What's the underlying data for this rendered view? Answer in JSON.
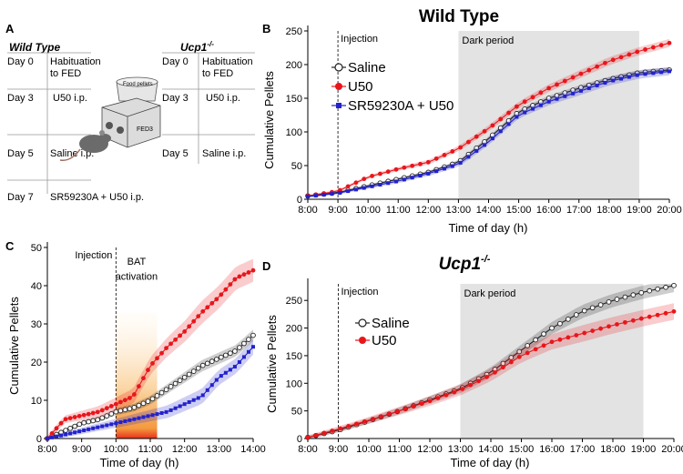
{
  "panel_labels": [
    "A",
    "B",
    "C",
    "D"
  ],
  "schematic": {
    "wt_title": "Wild Type",
    "ko_title_base": "Ucp1",
    "ko_title_sup": "-/-",
    "wt_rows": [
      {
        "day": "Day 0",
        "text1": "Habituation",
        "text2": "to FED"
      },
      {
        "day": "Day 3",
        "text1": "U50 i.p.",
        "text2": ""
      },
      {
        "day": "Day 5",
        "text1": "Saline i.p.",
        "text2": ""
      },
      {
        "day": "Day 7",
        "text1": "SR59230A + U50 i.p.",
        "text2": ""
      }
    ],
    "ko_rows": [
      {
        "day": "Day 0",
        "text1": "Habituation",
        "text2": "to FED"
      },
      {
        "day": "Day 3",
        "text1": "U50 i.p.",
        "text2": ""
      },
      {
        "day": "Day 5",
        "text1": "Saline i.p.",
        "text2": ""
      }
    ],
    "device_label": "FED3",
    "food_label": "Food pellets"
  },
  "colors": {
    "saline": "#222222",
    "u50": "#e8161b",
    "sr": "#2222cc",
    "dark_period": "#e3e3e3"
  },
  "chart_data": [
    {
      "id": "B",
      "type": "line",
      "title": "Wild Type",
      "xlabel": "Time of day (h)",
      "ylabel": "Cumulative Pellets",
      "x_ticks": [
        "8:00",
        "9:00",
        "10:00",
        "11:00",
        "12:00",
        "13:00",
        "14:00",
        "15:00",
        "16:00",
        "17:00",
        "18:00",
        "19:00",
        "20:00"
      ],
      "xlim": [
        8,
        20
      ],
      "ylim": [
        0,
        250
      ],
      "y_ticks": [
        0,
        50,
        100,
        150,
        200,
        250
      ],
      "annotations": {
        "injection": "Injection",
        "dark": "Dark period"
      },
      "injection_x": 9,
      "dark_range": [
        13,
        19
      ],
      "x": [
        8,
        9,
        10,
        11,
        12,
        13,
        14,
        15,
        16,
        17,
        18,
        19,
        20
      ],
      "series": [
        {
          "name": "Saline",
          "key": "saline",
          "marker": "open-circle",
          "values": [
            5,
            10,
            20,
            30,
            40,
            55,
            90,
            130,
            150,
            165,
            178,
            188,
            192
          ],
          "spread": 4
        },
        {
          "name": "U50",
          "key": "u50",
          "marker": "filled-circle",
          "values": [
            5,
            12,
            33,
            45,
            55,
            75,
            105,
            140,
            165,
            185,
            205,
            220,
            232
          ],
          "spread": 6
        },
        {
          "name": "SR59230A + U50",
          "key": "sr",
          "marker": "square",
          "values": [
            4,
            9,
            18,
            27,
            38,
            52,
            85,
            125,
            145,
            160,
            175,
            185,
            190
          ],
          "spread": 6
        }
      ]
    },
    {
      "id": "C",
      "type": "line",
      "title": "",
      "xlabel": "Time of day (h)",
      "ylabel": "Cumulative Pellets",
      "x_ticks": [
        "8:00",
        "9:00",
        "10:00",
        "11:00",
        "12:00",
        "13:00",
        "14:00"
      ],
      "xlim": [
        8,
        14
      ],
      "ylim": [
        0,
        50
      ],
      "y_ticks": [
        0,
        10,
        20,
        30,
        40,
        50
      ],
      "annotations": {
        "injection": "Injection",
        "bat1": "BAT",
        "bat2": "activation"
      },
      "injection_x": 10,
      "bat_range": [
        10,
        11.2
      ],
      "x": [
        8,
        8.5,
        9,
        9.5,
        10,
        10.5,
        11,
        11.5,
        12,
        12.5,
        13,
        13.5,
        14
      ],
      "series": [
        {
          "name": "Saline",
          "key": "saline",
          "marker": "open-circle",
          "values": [
            0,
            2,
            4,
            5,
            7,
            8,
            10,
            13,
            16,
            19,
            21,
            23,
            27
          ],
          "spread": 1.5
        },
        {
          "name": "U50",
          "key": "u50",
          "marker": "filled-circle",
          "values": [
            0,
            5,
            6,
            7,
            9,
            11,
            19,
            24,
            28,
            33,
            37,
            42,
            44
          ],
          "spread": 3
        },
        {
          "name": "SR59230A + U50",
          "key": "sr",
          "marker": "square",
          "values": [
            0,
            1,
            2,
            3,
            4,
            5,
            6,
            7,
            9,
            11,
            16,
            19,
            24
          ],
          "spread": 2
        }
      ]
    },
    {
      "id": "D",
      "type": "line",
      "title_base": "Ucp1",
      "title_sup": "-/-",
      "xlabel": "Time of day (h)",
      "ylabel": "Cumulative Pellets",
      "x_ticks": [
        "8:00",
        "9:00",
        "10:00",
        "11:00",
        "12:00",
        "13:00",
        "14:00",
        "15:00",
        "16:00",
        "17:00",
        "18:00",
        "19:00",
        "20:00"
      ],
      "xlim": [
        8,
        20
      ],
      "ylim": [
        0,
        280
      ],
      "y_ticks": [
        0,
        50,
        100,
        150,
        200,
        250
      ],
      "annotations": {
        "injection": "Injection",
        "dark": "Dark period"
      },
      "injection_x": 9,
      "dark_range": [
        13,
        19
      ],
      "x": [
        8,
        9,
        10,
        11,
        12,
        13,
        14,
        15,
        16,
        17,
        18,
        19,
        20
      ],
      "series": [
        {
          "name": "Saline",
          "key": "saline",
          "marker": "open-circle",
          "values": [
            2,
            15,
            32,
            50,
            70,
            90,
            120,
            160,
            200,
            230,
            250,
            265,
            277
          ],
          "spread": 12
        },
        {
          "name": "U50",
          "key": "u50",
          "marker": "filled-circle",
          "values": [
            2,
            17,
            33,
            50,
            68,
            88,
            115,
            150,
            175,
            190,
            205,
            218,
            230
          ],
          "spread": 15
        }
      ]
    }
  ]
}
